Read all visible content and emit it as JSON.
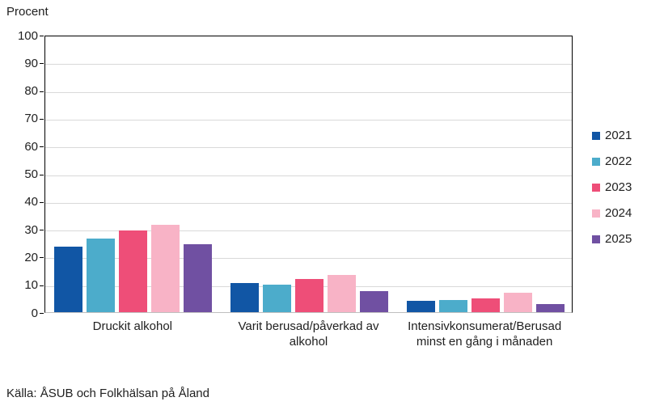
{
  "title": "Procent",
  "source": "Källa: ÅSUB och Folkhälsan på Åland",
  "colors": {
    "grid": "#d9d9d9",
    "axis": "#000000",
    "text": "#212121"
  },
  "chart_data": {
    "type": "bar",
    "title": "",
    "ylabel": "Procent",
    "xlabel": "",
    "ylim": [
      0,
      100
    ],
    "yticks": [
      0,
      10,
      20,
      30,
      40,
      50,
      60,
      70,
      80,
      90,
      100
    ],
    "grid": true,
    "legend_position": "right",
    "categories": [
      "Druckit alkohol",
      "Varit berusad/påverkad av alkohol",
      "Intensivkonsumerat/Berusad minst en gång i månaden"
    ],
    "series": [
      {
        "name": "2021",
        "color": "#1156a5",
        "values": [
          23.5,
          10.5,
          4
        ]
      },
      {
        "name": "2022",
        "color": "#4caccb",
        "values": [
          26.5,
          10,
          4.5
        ]
      },
      {
        "name": "2023",
        "color": "#ee4e78",
        "values": [
          29.5,
          12,
          5
        ]
      },
      {
        "name": "2024",
        "color": "#f8b3c6",
        "values": [
          31.5,
          13.5,
          7
        ]
      },
      {
        "name": "2025",
        "color": "#7050a2",
        "values": [
          24.5,
          7.5,
          3
        ]
      }
    ]
  }
}
